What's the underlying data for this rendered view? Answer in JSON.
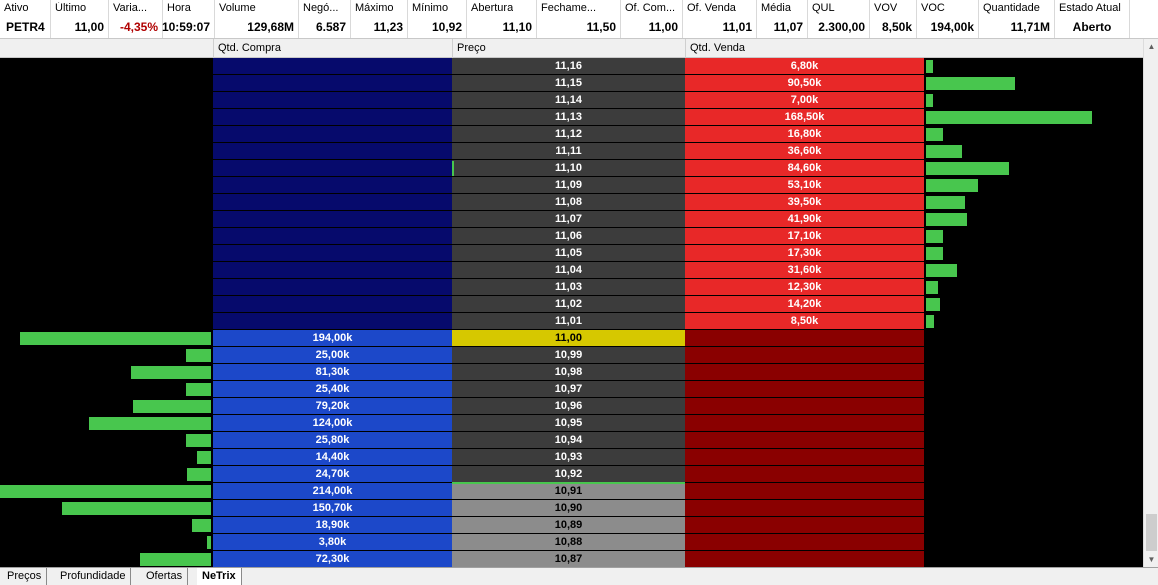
{
  "quote_header": {
    "columns": [
      {
        "label": "Ativo",
        "value": "PETR4"
      },
      {
        "label": "Último",
        "value": "11,00"
      },
      {
        "label": "Varia...",
        "value": "-4,35%",
        "color": "#b00000"
      },
      {
        "label": "Hora",
        "value": "10:59:07"
      },
      {
        "label": "Volume",
        "value": "129,68M"
      },
      {
        "label": "Negó...",
        "value": "6.587"
      },
      {
        "label": "Máximo",
        "value": "11,23"
      },
      {
        "label": "Mínimo",
        "value": "10,92"
      },
      {
        "label": "Abertura",
        "value": "11,10"
      },
      {
        "label": "Fechame...",
        "value": "11,50"
      },
      {
        "label": "Of. Com...",
        "value": "11,00"
      },
      {
        "label": "Of. Venda",
        "value": "11,01"
      },
      {
        "label": "Média",
        "value": "11,07"
      },
      {
        "label": "QUL",
        "value": "2.300,00"
      },
      {
        "label": "VOV",
        "value": "8,50k"
      },
      {
        "label": "VOC",
        "value": "194,00k"
      },
      {
        "label": "Quantidade",
        "value": "11,71M"
      },
      {
        "label": "Estado Atual",
        "value": "Aberto"
      }
    ]
  },
  "book_header": {
    "buy_qty": "Qtd. Compra",
    "price": "Preço",
    "sell_qty": "Qtd. Venda"
  },
  "colors": {
    "ask_qty": "#e82828",
    "ask_buy_empty": "#060a6c",
    "ask_price": "#3c3c3c",
    "last_price": "#d6c800",
    "bid_qty": "#1c48c9",
    "bid_sell_empty": "#8a0000",
    "bid_price_gray": "#8c8c8c",
    "volume_bar": "#48c64e"
  },
  "asks": [
    {
      "price": "11,16",
      "qty": "6,80k",
      "volume": 6.8
    },
    {
      "price": "11,15",
      "qty": "90,50k",
      "volume": 90.5
    },
    {
      "price": "11,14",
      "qty": "7,00k",
      "volume": 7.0
    },
    {
      "price": "11,13",
      "qty": "168,50k",
      "volume": 168.5
    },
    {
      "price": "11,12",
      "qty": "16,80k",
      "volume": 16.8
    },
    {
      "price": "11,11",
      "qty": "36,60k",
      "volume": 36.6
    },
    {
      "price": "11,10",
      "qty": "84,60k",
      "volume": 84.6
    },
    {
      "price": "11,09",
      "qty": "53,10k",
      "volume": 53.1
    },
    {
      "price": "11,08",
      "qty": "39,50k",
      "volume": 39.5
    },
    {
      "price": "11,07",
      "qty": "41,90k",
      "volume": 41.9
    },
    {
      "price": "11,06",
      "qty": "17,10k",
      "volume": 17.1
    },
    {
      "price": "11,05",
      "qty": "17,30k",
      "volume": 17.3
    },
    {
      "price": "11,04",
      "qty": "31,60k",
      "volume": 31.6
    },
    {
      "price": "11,03",
      "qty": "12,30k",
      "volume": 12.3
    },
    {
      "price": "11,02",
      "qty": "14,20k",
      "volume": 14.2
    },
    {
      "price": "11,01",
      "qty": "8,50k",
      "volume": 8.5
    }
  ],
  "bids": [
    {
      "price": "11,00",
      "qty": "194,00k",
      "volume": 194.0,
      "last": true
    },
    {
      "price": "10,99",
      "qty": "25,00k",
      "volume": 25.0
    },
    {
      "price": "10,98",
      "qty": "81,30k",
      "volume": 81.3
    },
    {
      "price": "10,97",
      "qty": "25,40k",
      "volume": 25.4
    },
    {
      "price": "10,96",
      "qty": "79,20k",
      "volume": 79.2
    },
    {
      "price": "10,95",
      "qty": "124,00k",
      "volume": 124.0
    },
    {
      "price": "10,94",
      "qty": "25,80k",
      "volume": 25.8
    },
    {
      "price": "10,93",
      "qty": "14,40k",
      "volume": 14.4
    },
    {
      "price": "10,92",
      "qty": "24,70k",
      "volume": 24.7
    },
    {
      "price": "10,91",
      "qty": "214,00k",
      "volume": 214.0,
      "below_min": true
    },
    {
      "price": "10,90",
      "qty": "150,70k",
      "volume": 150.7,
      "below_min": true
    },
    {
      "price": "10,89",
      "qty": "18,90k",
      "volume": 18.9,
      "below_min": true
    },
    {
      "price": "10,88",
      "qty": "3,80k",
      "volume": 3.8,
      "below_min": true
    },
    {
      "price": "10,87",
      "qty": "72,30k",
      "volume": 72.3,
      "below_min": true
    }
  ],
  "tabs": [
    {
      "label": "Preços",
      "active": false
    },
    {
      "label": "Profundidade",
      "active": false
    },
    {
      "label": "Ofertas",
      "active": false
    },
    {
      "label": "NeTrix",
      "active": true
    }
  ]
}
